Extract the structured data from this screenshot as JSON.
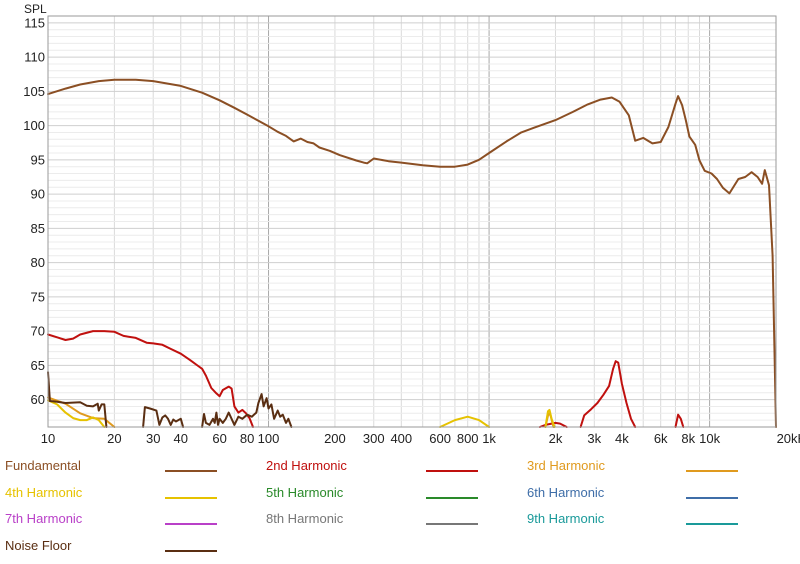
{
  "chart_data": {
    "type": "line",
    "ylabel": "SPL",
    "x_scale": "log",
    "xlim": [
      10,
      20000
    ],
    "ylim": [
      56,
      116
    ],
    "x_ticks": [
      {
        "v": 10,
        "label": "10"
      },
      {
        "v": 20,
        "label": "20"
      },
      {
        "v": 30,
        "label": "30"
      },
      {
        "v": 40,
        "label": "40"
      },
      {
        "v": 60,
        "label": "60"
      },
      {
        "v": 80,
        "label": "80"
      },
      {
        "v": 100,
        "label": "100"
      },
      {
        "v": 200,
        "label": "200"
      },
      {
        "v": 300,
        "label": "300"
      },
      {
        "v": 400,
        "label": "400"
      },
      {
        "v": 600,
        "label": "600"
      },
      {
        "v": 800,
        "label": "800"
      },
      {
        "v": 1000,
        "label": "1k"
      },
      {
        "v": 2000,
        "label": "2k"
      },
      {
        "v": 3000,
        "label": "3k"
      },
      {
        "v": 4000,
        "label": "4k"
      },
      {
        "v": 6000,
        "label": "6k"
      },
      {
        "v": 8000,
        "label": "8k"
      },
      {
        "v": 10000,
        "label": "10k"
      },
      {
        "v": 20000,
        "label": "20kHz"
      }
    ],
    "y_ticks": [
      60,
      65,
      70,
      75,
      80,
      85,
      90,
      95,
      100,
      105,
      110,
      115
    ],
    "grid": true,
    "series": [
      {
        "name": "Fundamental",
        "color": "#8B4F24",
        "points": [
          [
            10,
            104.6
          ],
          [
            12,
            105.4
          ],
          [
            14,
            106
          ],
          [
            17,
            106.5
          ],
          [
            20,
            106.7
          ],
          [
            25,
            106.7
          ],
          [
            30,
            106.5
          ],
          [
            40,
            105.8
          ],
          [
            50,
            104.8
          ],
          [
            60,
            103.7
          ],
          [
            70,
            102.6
          ],
          [
            80,
            101.6
          ],
          [
            90,
            100.7
          ],
          [
            100,
            99.9
          ],
          [
            110,
            99.1
          ],
          [
            120,
            98.5
          ],
          [
            130,
            97.7
          ],
          [
            140,
            98.1
          ],
          [
            150,
            97.6
          ],
          [
            160,
            97.4
          ],
          [
            170,
            96.8
          ],
          [
            190,
            96.3
          ],
          [
            210,
            95.7
          ],
          [
            250,
            94.9
          ],
          [
            270,
            94.6
          ],
          [
            280,
            94.5
          ],
          [
            300,
            95.2
          ],
          [
            350,
            94.8
          ],
          [
            400,
            94.6
          ],
          [
            500,
            94.2
          ],
          [
            600,
            94
          ],
          [
            700,
            94
          ],
          [
            800,
            94.3
          ],
          [
            900,
            95
          ],
          [
            1000,
            96
          ],
          [
            1200,
            97.7
          ],
          [
            1400,
            99
          ],
          [
            1600,
            99.7
          ],
          [
            2000,
            100.8
          ],
          [
            2400,
            102
          ],
          [
            2800,
            103.1
          ],
          [
            3200,
            103.8
          ],
          [
            3600,
            104.1
          ],
          [
            3900,
            103.5
          ],
          [
            4300,
            101.5
          ],
          [
            4600,
            97.8
          ],
          [
            5000,
            98.2
          ],
          [
            5500,
            97.4
          ],
          [
            6000,
            97.6
          ],
          [
            6500,
            99.8
          ],
          [
            7000,
            103.2
          ],
          [
            7200,
            104.3
          ],
          [
            7500,
            103
          ],
          [
            7800,
            100.8
          ],
          [
            8100,
            98.4
          ],
          [
            8600,
            97.2
          ],
          [
            9000,
            94.9
          ],
          [
            9500,
            93.4
          ],
          [
            10200,
            93
          ],
          [
            10800,
            92.2
          ],
          [
            11500,
            90.9
          ],
          [
            12300,
            90.1
          ],
          [
            13500,
            92.2
          ],
          [
            14500,
            92.5
          ],
          [
            15500,
            93.2
          ],
          [
            16500,
            92.5
          ],
          [
            17300,
            91.5
          ],
          [
            17800,
            93.5
          ],
          [
            18600,
            91.3
          ],
          [
            19300,
            81
          ],
          [
            20000,
            56
          ]
        ]
      },
      {
        "name": "2nd Harmonic",
        "color": "#C0100E",
        "points": [
          [
            10,
            69.5
          ],
          [
            11,
            69.1
          ],
          [
            12,
            68.7
          ],
          [
            13,
            68.9
          ],
          [
            14,
            69.5
          ],
          [
            16,
            70
          ],
          [
            18,
            70
          ],
          [
            20,
            69.9
          ],
          [
            22,
            69.3
          ],
          [
            25,
            69
          ],
          [
            28,
            68.3
          ],
          [
            30,
            68.2
          ],
          [
            33,
            68
          ],
          [
            36,
            67.4
          ],
          [
            40,
            66.7
          ],
          [
            44,
            65.8
          ],
          [
            48,
            64.9
          ],
          [
            50,
            64.5
          ],
          [
            52,
            63.5
          ],
          [
            55,
            61.7
          ],
          [
            58,
            60.9
          ],
          [
            60,
            60.5
          ],
          [
            62,
            61.4
          ],
          [
            66,
            61.9
          ],
          [
            68,
            61.6
          ],
          [
            70,
            59
          ],
          [
            73,
            58.1
          ],
          [
            76,
            58.5
          ],
          [
            79,
            58
          ],
          [
            82,
            57.3
          ],
          [
            85,
            56
          ]
        ],
        "segments": [
          [
            [
              1700,
              56
            ],
            [
              1800,
              56.3
            ],
            [
              2000,
              56.6
            ],
            [
              2100,
              56.5
            ],
            [
              2250,
              56
            ]
          ],
          [
            [
              2600,
              56
            ],
            [
              2700,
              57.7
            ],
            [
              2900,
              58.6
            ],
            [
              3100,
              59.5
            ],
            [
              3300,
              60.7
            ],
            [
              3500,
              62
            ],
            [
              3650,
              64.5
            ],
            [
              3750,
              65.6
            ],
            [
              3850,
              65.4
            ],
            [
              4000,
              62.3
            ],
            [
              4200,
              59.5
            ],
            [
              4400,
              57.2
            ],
            [
              4600,
              56
            ]
          ],
          [
            [
              7000,
              56
            ],
            [
              7200,
              57.8
            ],
            [
              7400,
              57.2
            ],
            [
              7600,
              56
            ]
          ]
        ]
      },
      {
        "name": "3rd Harmonic",
        "color": "#E09A1E",
        "points": [
          [
            10,
            60.3
          ],
          [
            12,
            59.4
          ],
          [
            14,
            58
          ],
          [
            16,
            57.3
          ],
          [
            18,
            57.2
          ],
          [
            20,
            56
          ]
        ],
        "segments": [
          [
            [
              1800,
              56
            ],
            [
              1860,
              58
            ],
            [
              1900,
              57.7
            ],
            [
              1960,
              56
            ]
          ]
        ]
      },
      {
        "name": "4th Harmonic",
        "color": "#E6C200",
        "points": [
          [
            10,
            59.9
          ],
          [
            11,
            59.3
          ],
          [
            12,
            58.1
          ],
          [
            13,
            57.3
          ],
          [
            14,
            57
          ],
          [
            15,
            57
          ],
          [
            16,
            57.4
          ],
          [
            17,
            57
          ],
          [
            18,
            56
          ]
        ],
        "segments": [
          [
            [
              600,
              56
            ],
            [
              700,
              57
            ],
            [
              800,
              57.5
            ],
            [
              900,
              57
            ],
            [
              1000,
              56
            ]
          ],
          [
            [
              1800,
              56
            ],
            [
              1850,
              58.3
            ],
            [
              1880,
              58.5
            ],
            [
              1920,
              57.2
            ],
            [
              1980,
              56
            ]
          ]
        ]
      },
      {
        "name": "5th Harmonic",
        "color": "#2A8A2A",
        "points": []
      },
      {
        "name": "6th Harmonic",
        "color": "#3F6EA8",
        "points": []
      },
      {
        "name": "7th Harmonic",
        "color": "#B940C8",
        "points": []
      },
      {
        "name": "8th Harmonic",
        "color": "#777777",
        "points": []
      },
      {
        "name": "9th Harmonic",
        "color": "#1A9A9A",
        "points": []
      },
      {
        "name": "Noise Floor",
        "color": "#5A2E12",
        "points": [
          [
            10,
            64
          ],
          [
            10.2,
            59.8
          ],
          [
            11,
            59.7
          ],
          [
            12,
            59.5
          ],
          [
            14,
            59.6
          ],
          [
            15,
            59.1
          ],
          [
            16,
            59
          ],
          [
            16.8,
            59.4
          ],
          [
            17,
            58.4
          ],
          [
            17.5,
            59.3
          ],
          [
            18,
            59.3
          ],
          [
            18.4,
            56
          ]
        ],
        "segments": [
          [
            [
              27,
              56
            ],
            [
              27.5,
              58.9
            ],
            [
              29,
              58.7
            ],
            [
              31,
              58.4
            ],
            [
              32,
              56.3
            ],
            [
              33,
              57.4
            ],
            [
              34,
              57.7
            ],
            [
              35,
              57.2
            ],
            [
              36,
              56.3
            ],
            [
              37,
              57.1
            ],
            [
              38,
              56.8
            ],
            [
              40,
              57.2
            ],
            [
              41,
              56
            ]
          ],
          [
            [
              50,
              56
            ],
            [
              51,
              57.9
            ],
            [
              52,
              56.6
            ],
            [
              54,
              56.3
            ],
            [
              56,
              57.2
            ],
            [
              57,
              56.6
            ],
            [
              58,
              58.1
            ],
            [
              59,
              56.3
            ],
            [
              60,
              57.2
            ],
            [
              62,
              56.6
            ],
            [
              64,
              57.2
            ],
            [
              66,
              58.1
            ],
            [
              70,
              56.3
            ],
            [
              73,
              57.5
            ],
            [
              76,
              57.2
            ],
            [
              80,
              57.8
            ],
            [
              84,
              57.5
            ],
            [
              88,
              58.1
            ],
            [
              90,
              59.5
            ],
            [
              93,
              60.8
            ],
            [
              95,
              59
            ],
            [
              98,
              60.2
            ],
            [
              100,
              58.7
            ],
            [
              103,
              59.3
            ],
            [
              106,
              57.2
            ],
            [
              110,
              58.4
            ],
            [
              113,
              57.5
            ],
            [
              116,
              57.8
            ],
            [
              120,
              56.6
            ],
            [
              123,
              57.2
            ],
            [
              127,
              56
            ]
          ]
        ]
      }
    ],
    "legend_position": "bottom"
  }
}
